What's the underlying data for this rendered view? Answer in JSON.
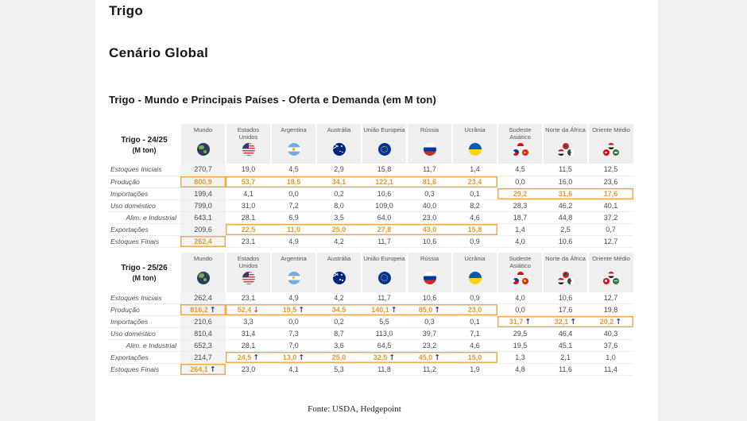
{
  "page": {
    "title": "Trigo",
    "subtitle": "Cenário Global",
    "table_title": "Trigo - Mundo e Principais Países - Oferta e Demanda (em M ton)",
    "footer": "Fonte: USDA, Hedgepoint"
  },
  "colors": {
    "highlight_text": "#E2992F",
    "highlight_border": "#EDAC4D",
    "arrow_up": "#31319B",
    "arrow_down": "#D8403C",
    "header_bg": "#EFEFEF",
    "world_column_bg": "#F3F3F3",
    "page_bg": "#F0F1F1"
  },
  "columns": [
    {
      "label": "Mundo",
      "flag": "world",
      "icon": "world-globe-icon"
    },
    {
      "label": "Estados Unidos",
      "flag": "us",
      "icon": "usa-flag-icon"
    },
    {
      "label": "Argentina",
      "flag": "ar",
      "icon": "argentina-flag-icon"
    },
    {
      "label": "Austrália",
      "flag": "au",
      "icon": "australia-flag-icon"
    },
    {
      "label": "União Europeia",
      "flag": "eu",
      "icon": "eu-flag-icon"
    },
    {
      "label": "Rússia",
      "flag": "ru",
      "icon": "russia-flag-icon"
    },
    {
      "label": "Ucrânia",
      "flag": "ua",
      "icon": "ukraine-flag-icon"
    },
    {
      "label": "Sudeste Asiático",
      "cluster": [
        "id",
        "ph",
        "vn"
      ],
      "icon": "southeast-asia-flags-icon"
    },
    {
      "label": "Norte da África",
      "cluster": [
        "ma",
        "eg",
        "dz"
      ],
      "icon": "north-africa-flags-icon"
    },
    {
      "label": "Oriente Médio",
      "cluster": [
        "iq",
        "tr",
        "sa"
      ],
      "icon": "middle-east-flags-icon"
    }
  ],
  "tables": [
    {
      "season": "Trigo - 24/25",
      "unit": "(M ton)",
      "rows": [
        {
          "label": "Estoques Iniciais",
          "values": [
            "270,7",
            "19,0",
            "4,5",
            "2,9",
            "15,8",
            "11,7",
            "1,4",
            "4,5",
            "11,5",
            "12,5"
          ]
        },
        {
          "label": "Produção",
          "values": [
            "800,9",
            "53,7",
            "18,5",
            "34,1",
            "122,1",
            "81,6",
            "23,4",
            "0,0",
            "16,0",
            "23,6"
          ],
          "orange": [
            0,
            1,
            2,
            3,
            4,
            5,
            6
          ],
          "boxes": [
            [
              0,
              0
            ],
            [
              1,
              6
            ]
          ]
        },
        {
          "label": "Importações",
          "values": [
            "199,4",
            "4,1",
            "0,0",
            "0,2",
            "10,6",
            "0,3",
            "0,1",
            "29,2",
            "31,6",
            "17,6"
          ],
          "orange": [
            7,
            8,
            9
          ],
          "boxes": [
            [
              7,
              9
            ]
          ]
        },
        {
          "label": "Uso doméstico",
          "values": [
            "799,0",
            "31,0",
            "7,2",
            "8,0",
            "109,0",
            "40,0",
            "8,2",
            "28,3",
            "46,2",
            "40,1"
          ]
        },
        {
          "label": "Alim. e Industrial",
          "indent": true,
          "values": [
            "643,1",
            "28,1",
            "6,9",
            "3,5",
            "64,0",
            "23,0",
            "4,6",
            "18,7",
            "44,8",
            "37,2"
          ]
        },
        {
          "label": "Exportações",
          "values": [
            "209,6",
            "22,5",
            "11,0",
            "25,0",
            "27,8",
            "43,0",
            "15,8",
            "1,4",
            "2,5",
            "0,7"
          ],
          "orange": [
            1,
            2,
            3,
            4,
            5,
            6
          ],
          "boxes": [
            [
              1,
              6
            ]
          ]
        },
        {
          "label": "Estoques Finais",
          "values": [
            "262,4",
            "23,1",
            "4,9",
            "4,2",
            "11,7",
            "10,6",
            "0,9",
            "4,0",
            "10,6",
            "12,7"
          ],
          "orange": [
            0
          ],
          "boxes": [
            [
              0,
              0
            ]
          ]
        }
      ]
    },
    {
      "season": "Trigo - 25/26",
      "unit": "(M ton)",
      "rows": [
        {
          "label": "Estoques Iniciais",
          "values": [
            "262,4",
            "23,1",
            "4,9",
            "4,2",
            "11,7",
            "10,6",
            "0,9",
            "4,0",
            "10,6",
            "12,7"
          ]
        },
        {
          "label": "Produção",
          "values": [
            "816,2",
            "52,4",
            "19,5",
            "34,5",
            "140,1",
            "85,0",
            "23,0",
            "0,0",
            "17,6",
            "19,8"
          ],
          "orange": [
            0,
            1,
            2,
            3,
            4,
            5,
            6
          ],
          "boxes": [
            [
              0,
              0
            ],
            [
              1,
              6
            ]
          ],
          "arrows": [
            "up",
            "down",
            "up",
            "",
            "up",
            "up",
            "",
            "",
            "",
            ""
          ]
        },
        {
          "label": "Importações",
          "values": [
            "210,6",
            "3,3",
            "0,0",
            "0,2",
            "5,5",
            "0,3",
            "0,1",
            "31,7",
            "32,1",
            "20,2"
          ],
          "orange": [
            7,
            8,
            9
          ],
          "boxes": [
            [
              7,
              9
            ]
          ],
          "arrows": [
            "",
            "",
            "",
            "",
            "",
            "",
            "",
            "up",
            "up",
            "up"
          ]
        },
        {
          "label": "Uso doméstico",
          "values": [
            "810,4",
            "31,4",
            "7,3",
            "8,7",
            "113,0",
            "39,7",
            "7,1",
            "29,5",
            "46,4",
            "40,3"
          ]
        },
        {
          "label": "Alim. e Industrial",
          "indent": true,
          "values": [
            "652,3",
            "28,1",
            "7,0",
            "3,6",
            "64,5",
            "23,2",
            "4,6",
            "19,5",
            "45,1",
            "37,6"
          ]
        },
        {
          "label": "Exportações",
          "values": [
            "214,7",
            "24,5",
            "13,0",
            "25,0",
            "32,5",
            "45,0",
            "15,0",
            "1,3",
            "2,1",
            "1,0"
          ],
          "orange": [
            1,
            2,
            3,
            4,
            5,
            6
          ],
          "boxes": [
            [
              1,
              6
            ]
          ],
          "arrows": [
            "",
            "up",
            "up",
            "",
            "up",
            "up",
            "",
            "",
            "",
            ""
          ]
        },
        {
          "label": "Estoques Finais",
          "values": [
            "264,1",
            "23,0",
            "4,1",
            "5,3",
            "11,8",
            "11,2",
            "1,9",
            "4,8",
            "11,6",
            "11,4"
          ],
          "orange": [
            0
          ],
          "boxes": [
            [
              0,
              0
            ]
          ],
          "arrows": [
            "up",
            "",
            "",
            "",
            "",
            "",
            "",
            "",
            "",
            ""
          ]
        }
      ]
    }
  ]
}
